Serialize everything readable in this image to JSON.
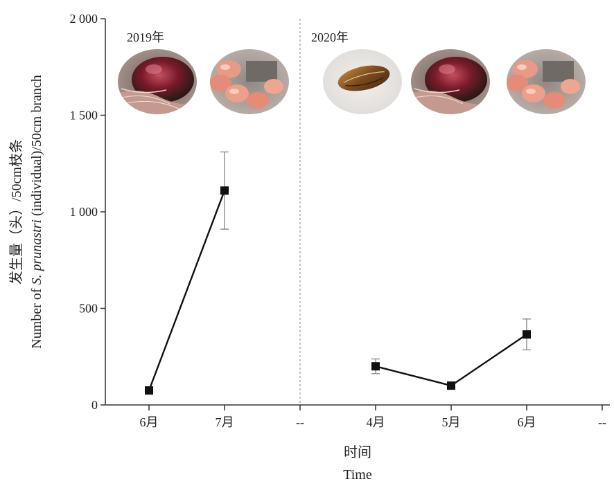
{
  "chart_data": {
    "type": "line",
    "ylabel_cn": "发生量（头）/50cm枝条",
    "ylabel_en_prefix": "Number of ",
    "ylabel_en_species": "S. prunastri",
    "ylabel_en_suffix": " (individual)/50cm branch",
    "xlabel_cn": "时间",
    "xlabel_en": "Time",
    "ylim": [
      0,
      2000
    ],
    "yticks": [
      0,
      500,
      1000,
      1500,
      2000
    ],
    "ytick_labels": [
      "0",
      "500",
      "1 000",
      "1 500",
      "2 000"
    ],
    "categories": [
      "6月",
      "7月",
      "--",
      "4月",
      "5月",
      "6月",
      "--"
    ],
    "year_labels": [
      "2019年",
      "2020年"
    ],
    "series": [
      {
        "points": [
          {
            "x": "6月",
            "y": 75
          },
          {
            "x": "7月",
            "y": 1110,
            "err": 200
          }
        ]
      },
      {
        "points": [
          {
            "x": "4月",
            "y": 200,
            "err": 38
          },
          {
            "x": "5月",
            "y": 100
          },
          {
            "x": "6月",
            "y": 365,
            "err": 80
          }
        ]
      }
    ],
    "divider_after": "7月",
    "colors": {
      "line": "#111111",
      "marker": "#111111",
      "errorbar": "#7a7a7a",
      "axis": "#333333",
      "divider": "#999999"
    },
    "photos": [
      {
        "name": "photo-overwintering-eggs-2019",
        "subject": "overwintering eggs"
      },
      {
        "name": "photo-nymphs-2019",
        "subject": "nymphs"
      },
      {
        "name": "photo-adult-scale-2020",
        "subject": "adult scale"
      },
      {
        "name": "photo-overwintering-eggs-2020",
        "subject": "overwintering eggs"
      },
      {
        "name": "photo-nymphs-2020",
        "subject": "nymphs"
      }
    ]
  }
}
